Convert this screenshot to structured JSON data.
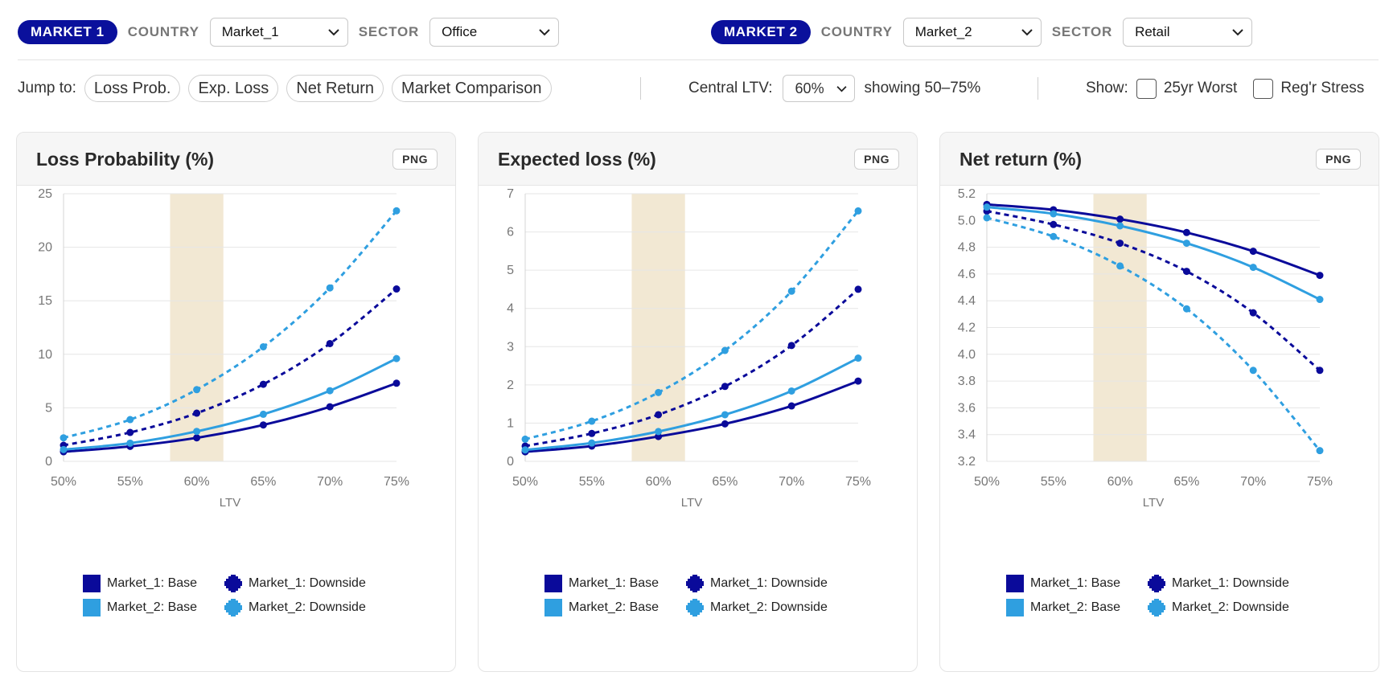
{
  "colors": {
    "market1": "#0a0a9a",
    "market2": "#2f9fe0",
    "band": "#f2e8d3",
    "pill": "#0a109c"
  },
  "market1": {
    "pill": "MARKET 1",
    "country_label": "COUNTRY",
    "country_value": "Market_1",
    "sector_label": "SECTOR",
    "sector_value": "Office"
  },
  "market2": {
    "pill": "MARKET 2",
    "country_label": "COUNTRY",
    "country_value": "Market_2",
    "sector_label": "SECTOR",
    "sector_value": "Retail"
  },
  "toolbar": {
    "jump_label": "Jump to:",
    "jump_links": [
      "Loss Prob.",
      "Exp. Loss",
      "Net Return",
      "Market Comparison"
    ],
    "central_ltv_label": "Central LTV:",
    "central_ltv_value": "60%",
    "showing_text": "showing 50–75%",
    "show_label": "Show:",
    "toggles": [
      {
        "label": "25yr Worst",
        "checked": false
      },
      {
        "label": "Reg'r Stress",
        "checked": false
      }
    ]
  },
  "chart_data": [
    {
      "type": "line",
      "title": "Loss Probability (%)",
      "button": "PNG",
      "xlabel": "LTV",
      "categories": [
        "50%",
        "55%",
        "60%",
        "65%",
        "70%",
        "75%"
      ],
      "ylim": [
        0,
        25
      ],
      "yticks": [
        0,
        5,
        10,
        15,
        20,
        25
      ],
      "ytick_labels": [
        "0",
        "5",
        "10",
        "15",
        "20",
        "25"
      ],
      "highlight_band": [
        58,
        62
      ],
      "series": [
        {
          "name": "Market_1: Base",
          "market": "market1",
          "dashed": false,
          "values": [
            0.9,
            1.4,
            2.2,
            3.4,
            5.1,
            7.3
          ]
        },
        {
          "name": "Market_1: Downside",
          "market": "market1",
          "dashed": true,
          "values": [
            1.5,
            2.7,
            4.5,
            7.2,
            11.0,
            16.1
          ]
        },
        {
          "name": "Market_2: Base",
          "market": "market2",
          "dashed": false,
          "values": [
            1.1,
            1.7,
            2.8,
            4.4,
            6.6,
            9.6
          ]
        },
        {
          "name": "Market_2: Downside",
          "market": "market2",
          "dashed": true,
          "values": [
            2.2,
            3.9,
            6.7,
            10.7,
            16.2,
            23.4
          ]
        }
      ]
    },
    {
      "type": "line",
      "title": "Expected loss (%)",
      "button": "PNG",
      "xlabel": "LTV",
      "categories": [
        "50%",
        "55%",
        "60%",
        "65%",
        "70%",
        "75%"
      ],
      "ylim": [
        0,
        7
      ],
      "yticks": [
        0,
        1,
        2,
        3,
        4,
        5,
        6,
        7
      ],
      "ytick_labels": [
        "0",
        "1",
        "2",
        "3",
        "4",
        "5",
        "6",
        "7"
      ],
      "highlight_band": [
        58,
        62
      ],
      "series": [
        {
          "name": "Market_1: Base",
          "market": "market1",
          "dashed": false,
          "values": [
            0.25,
            0.4,
            0.65,
            0.98,
            1.45,
            2.1
          ]
        },
        {
          "name": "Market_1: Downside",
          "market": "market1",
          "dashed": true,
          "values": [
            0.4,
            0.73,
            1.22,
            1.96,
            3.03,
            4.5
          ]
        },
        {
          "name": "Market_2: Base",
          "market": "market2",
          "dashed": false,
          "values": [
            0.3,
            0.48,
            0.78,
            1.22,
            1.84,
            2.7
          ]
        },
        {
          "name": "Market_2: Downside",
          "market": "market2",
          "dashed": true,
          "values": [
            0.58,
            1.05,
            1.8,
            2.9,
            4.45,
            6.55
          ]
        }
      ]
    },
    {
      "type": "line",
      "title": "Net return (%)",
      "button": "PNG",
      "xlabel": "LTV",
      "categories": [
        "50%",
        "55%",
        "60%",
        "65%",
        "70%",
        "75%"
      ],
      "ylim": [
        3.2,
        5.2
      ],
      "yticks": [
        3.2,
        3.4,
        3.6,
        3.8,
        4.0,
        4.2,
        4.4,
        4.6,
        4.8,
        5.0,
        5.2
      ],
      "ytick_labels": [
        "3.2",
        "3.4",
        "3.6",
        "3.8",
        "4.0",
        "4.2",
        "4.4",
        "4.6",
        "4.8",
        "5.0",
        "5.2"
      ],
      "highlight_band": [
        58,
        62
      ],
      "series": [
        {
          "name": "Market_1: Base",
          "market": "market1",
          "dashed": false,
          "values": [
            5.12,
            5.08,
            5.01,
            4.91,
            4.77,
            4.59
          ]
        },
        {
          "name": "Market_1: Downside",
          "market": "market1",
          "dashed": true,
          "values": [
            5.07,
            4.97,
            4.83,
            4.62,
            4.31,
            3.88
          ]
        },
        {
          "name": "Market_2: Base",
          "market": "market2",
          "dashed": false,
          "values": [
            5.1,
            5.05,
            4.96,
            4.83,
            4.65,
            4.41
          ]
        },
        {
          "name": "Market_2: Downside",
          "market": "market2",
          "dashed": true,
          "values": [
            5.02,
            4.88,
            4.66,
            4.34,
            3.88,
            3.28
          ]
        }
      ]
    }
  ]
}
